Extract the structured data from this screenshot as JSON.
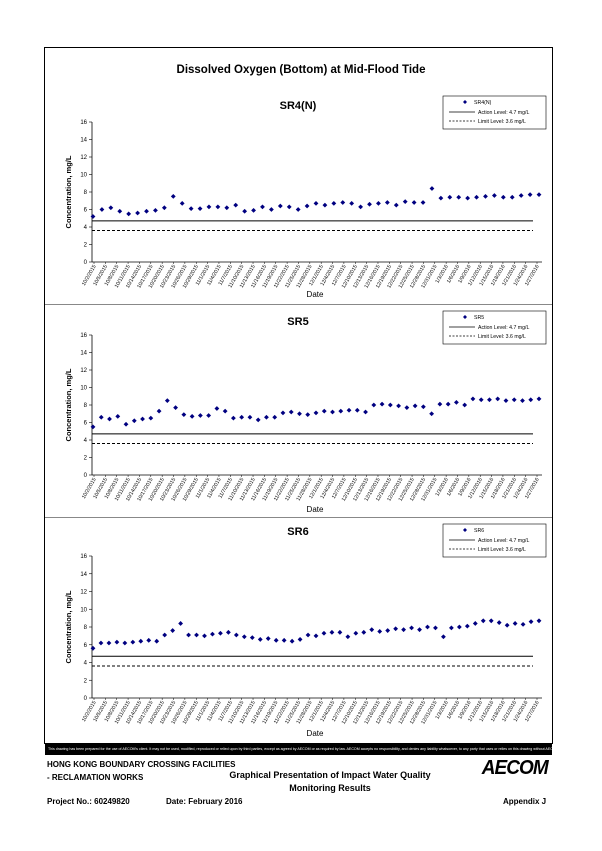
{
  "page": {
    "title": "Dissolved Oxygen (Bottom) at Mid-Flood Tide",
    "disclaimer": "This drawing has been prepared for the use of AECOM's client. It may not be used, modified, reproduced or relied upon by third parties, except as agreed by AECOM or as required by law. AECOM accepts no responsibility, and denies any liability whatsoever, to any party that uses or relies on this drawing without AECOM's express written consent.",
    "project_line1": "HONG KONG BOUNDARY CROSSING FACILITIES",
    "project_line2": "- RECLAMATION WORKS",
    "project_no": "Project No.: 60249820",
    "date": "Date: February 2016",
    "subject_line1": "Graphical Presentation of Impact Water Quality",
    "subject_line2": "Monitoring Results",
    "appendix": "Appendix J",
    "logo": "AECOM"
  },
  "chart_data": [
    {
      "type": "scatter",
      "title": "SR4(N)",
      "xlabel": "Date",
      "ylabel": "Concentration, mg/L",
      "ylim": [
        0,
        16
      ],
      "yticks": [
        0,
        2,
        4,
        6,
        8,
        10,
        12,
        14,
        16
      ],
      "grid": false,
      "legend_position": "top-right",
      "tick_labels": [
        "10/2/2015",
        "10/5/2015",
        "10/8/2015",
        "10/11/2015",
        "10/14/2015",
        "10/17/2015",
        "10/20/2015",
        "10/23/2015",
        "10/26/2015",
        "10/29/2015",
        "11/1/2015",
        "11/4/2015",
        "11/7/2015",
        "11/10/2015",
        "11/13/2015",
        "11/16/2015",
        "11/19/2015",
        "11/22/2015",
        "11/25/2015",
        "11/28/2015",
        "12/1/2015",
        "12/4/2015",
        "12/7/2015",
        "12/10/2015",
        "12/13/2015",
        "12/16/2015",
        "12/19/2015",
        "12/22/2015",
        "12/25/2015",
        "12/28/2015",
        "12/31/2015",
        "1/3/2016",
        "1/6/2016",
        "1/9/2016",
        "1/12/2016",
        "1/15/2016",
        "1/18/2016",
        "1/21/2016",
        "1/24/2016",
        "1/27/2016"
      ],
      "series": [
        {
          "name": "SR4(N)",
          "values": [
            5.2,
            6.0,
            6.2,
            5.8,
            5.5,
            5.6,
            5.8,
            5.9,
            6.2,
            7.5,
            6.7,
            6.1,
            6.1,
            6.3,
            6.3,
            6.2,
            6.5,
            5.8,
            5.9,
            6.3,
            6.0,
            6.4,
            6.3,
            6.0,
            6.4,
            6.7,
            6.5,
            6.7,
            6.8,
            6.7,
            6.3,
            6.6,
            6.7,
            6.8,
            6.5,
            6.9,
            6.8,
            6.8,
            8.4,
            7.3,
            7.4,
            7.4,
            7.3,
            7.4,
            7.5,
            7.6,
            7.4,
            7.4,
            7.6,
            7.7,
            7.7
          ]
        },
        {
          "name": "Action Level: 4.7 mg/L",
          "value": 4.7,
          "style": "solid"
        },
        {
          "name": "Limit Level: 3.6 mg/L",
          "value": 3.6,
          "style": "dashed"
        }
      ]
    },
    {
      "type": "scatter",
      "title": "SR5",
      "xlabel": "Date",
      "ylabel": "Concentration, mg/L",
      "ylim": [
        0,
        16
      ],
      "yticks": [
        0,
        2,
        4,
        6,
        8,
        10,
        12,
        14,
        16
      ],
      "grid": false,
      "legend_position": "top-right",
      "tick_labels": [
        "10/2/2015",
        "10/5/2015",
        "10/8/2015",
        "10/11/2015",
        "10/14/2015",
        "10/17/2015",
        "10/20/2015",
        "10/23/2015",
        "10/26/2015",
        "10/29/2015",
        "11/1/2015",
        "11/4/2015",
        "11/7/2015",
        "11/10/2015",
        "11/13/2015",
        "11/16/2015",
        "11/19/2015",
        "11/22/2015",
        "11/25/2015",
        "11/28/2015",
        "12/1/2015",
        "12/4/2015",
        "12/7/2015",
        "12/10/2015",
        "12/13/2015",
        "12/16/2015",
        "12/19/2015",
        "12/22/2015",
        "12/25/2015",
        "12/28/2015",
        "12/31/2015",
        "1/3/2016",
        "1/6/2016",
        "1/9/2016",
        "1/12/2016",
        "1/15/2016",
        "1/18/2016",
        "1/21/2016",
        "1/24/2016",
        "1/27/2016"
      ],
      "series": [
        {
          "name": "SR5",
          "values": [
            5.5,
            6.6,
            6.4,
            6.7,
            5.8,
            6.2,
            6.4,
            6.5,
            7.3,
            8.5,
            7.7,
            6.9,
            6.7,
            6.8,
            6.8,
            7.6,
            7.3,
            6.5,
            6.6,
            6.6,
            6.3,
            6.6,
            6.6,
            7.1,
            7.2,
            7.0,
            6.9,
            7.1,
            7.3,
            7.2,
            7.3,
            7.4,
            7.4,
            7.2,
            8.0,
            8.1,
            8.0,
            7.9,
            7.7,
            7.9,
            7.8,
            7.0,
            8.1,
            8.1,
            8.3,
            8.0,
            8.7,
            8.6,
            8.6,
            8.7,
            8.5,
            8.6,
            8.5,
            8.6,
            8.7
          ]
        },
        {
          "name": "Action Level: 4.7 mg/L",
          "value": 4.7,
          "style": "solid"
        },
        {
          "name": "Limit Level: 3.6 mg/L",
          "value": 3.6,
          "style": "dashed"
        }
      ]
    },
    {
      "type": "scatter",
      "title": "SR6",
      "xlabel": "Date",
      "ylabel": "Concentration, mg/L",
      "ylim": [
        0,
        16
      ],
      "yticks": [
        0,
        2,
        4,
        6,
        8,
        10,
        12,
        14,
        16
      ],
      "grid": false,
      "legend_position": "top-right",
      "tick_labels": [
        "10/2/2015",
        "10/5/2015",
        "10/8/2015",
        "10/11/2015",
        "10/14/2015",
        "10/17/2015",
        "10/20/2015",
        "10/23/2015",
        "10/26/2015",
        "10/29/2015",
        "11/1/2015",
        "11/4/2015",
        "11/7/2015",
        "11/10/2015",
        "11/13/2015",
        "11/16/2015",
        "11/19/2015",
        "11/22/2015",
        "11/25/2015",
        "11/28/2015",
        "12/1/2015",
        "12/4/2015",
        "12/7/2015",
        "12/10/2015",
        "12/13/2015",
        "12/16/2015",
        "12/19/2015",
        "12/22/2015",
        "12/25/2015",
        "12/28/2015",
        "12/31/2015",
        "1/3/2016",
        "1/6/2016",
        "1/9/2016",
        "1/12/2016",
        "1/15/2016",
        "1/18/2016",
        "1/21/2016",
        "1/24/2016",
        "1/27/2016"
      ],
      "series": [
        {
          "name": "SR6",
          "values": [
            5.6,
            6.2,
            6.2,
            6.3,
            6.2,
            6.3,
            6.4,
            6.5,
            6.4,
            7.1,
            7.6,
            8.4,
            7.1,
            7.1,
            7.0,
            7.2,
            7.3,
            7.4,
            7.1,
            6.9,
            6.8,
            6.6,
            6.7,
            6.5,
            6.5,
            6.4,
            6.6,
            7.1,
            7.0,
            7.3,
            7.4,
            7.4,
            6.9,
            7.3,
            7.4,
            7.7,
            7.5,
            7.6,
            7.8,
            7.7,
            7.9,
            7.7,
            8.0,
            7.9,
            6.9,
            7.9,
            8.0,
            8.1,
            8.4,
            8.7,
            8.7,
            8.5,
            8.2,
            8.4,
            8.3,
            8.6,
            8.7
          ]
        },
        {
          "name": "Action Level: 4.7 mg/L",
          "value": 4.7,
          "style": "solid"
        },
        {
          "name": "Limit Level: 3.6 mg/L",
          "value": 3.6,
          "style": "dashed"
        }
      ]
    }
  ]
}
